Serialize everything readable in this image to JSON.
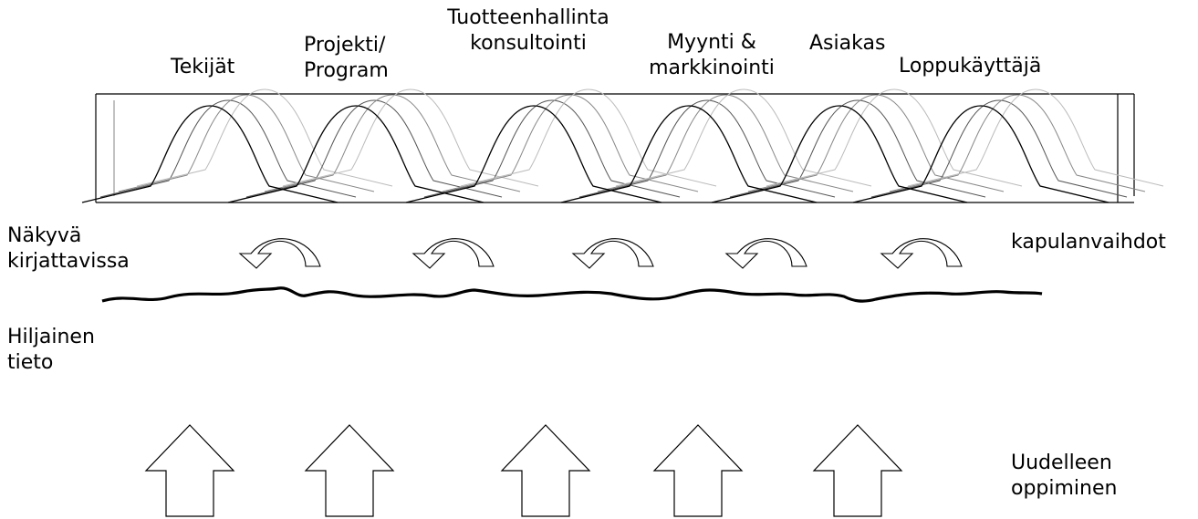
{
  "stages": [
    {
      "line1": "Tekijät",
      "line2": ""
    },
    {
      "line1": "Projekti/",
      "line2": "Program"
    },
    {
      "line1": "Tuotteenhallinta",
      "line2": "konsultointi"
    },
    {
      "line1": "Myynti &",
      "line2": "markkinointi"
    },
    {
      "line1": "Asiakas",
      "line2": ""
    },
    {
      "line1": "Loppukäyttäjä",
      "line2": ""
    }
  ],
  "left_labels": {
    "visible": {
      "line1": "Näkyvä",
      "line2": "kirjattavissa"
    },
    "tacit": {
      "line1": "Hiljainen",
      "line2": "tieto"
    }
  },
  "right_labels": {
    "handoffs": "kapulanvaihdot",
    "relearning": {
      "line1": "Uudelleen",
      "line2": "oppiminen"
    }
  }
}
